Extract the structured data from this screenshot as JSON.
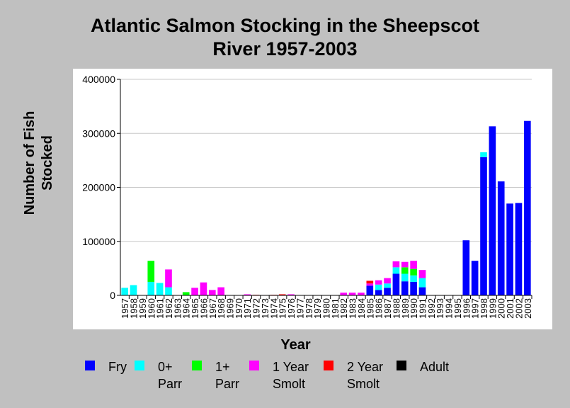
{
  "chart_data": {
    "type": "bar",
    "stacked": true,
    "title": [
      "Atlantic Salmon Stocking in the Sheepscot",
      "River 1957-2003"
    ],
    "xlabel": "Year",
    "ylabel": [
      "Number of Fish",
      "Stocked"
    ],
    "ylim": [
      0,
      400000
    ],
    "yticks": [
      "0",
      "100000",
      "200000",
      "300000",
      "400000"
    ],
    "grid": true,
    "legend_position": "bottom",
    "categories": [
      "1957",
      "1958",
      "1959",
      "1960",
      "1961",
      "1962",
      "1963",
      "1964",
      "1965",
      "1966",
      "1967",
      "1968",
      "1969",
      "1970",
      "1971",
      "1972",
      "1973",
      "1974",
      "1975",
      "1976",
      "1977",
      "1978",
      "1979",
      "1980",
      "1981",
      "1982",
      "1983",
      "1984",
      "1985",
      "1986",
      "1987",
      "1988",
      "1989",
      "1990",
      "1991",
      "1992",
      "1993",
      "1994",
      "1995",
      "1996",
      "1997",
      "1998",
      "1999",
      "2000",
      "2001",
      "2002",
      "2003"
    ],
    "series": [
      {
        "name": "Fry",
        "color": "#0000ff",
        "values": [
          0,
          0,
          0,
          0,
          0,
          0,
          0,
          0,
          0,
          0,
          0,
          0,
          0,
          0,
          0,
          0,
          0,
          0,
          0,
          0,
          0,
          0,
          0,
          0,
          0,
          0,
          0,
          0,
          18000,
          10000,
          14000,
          40000,
          26000,
          25000,
          15000,
          0,
          0,
          0,
          0,
          102000,
          64000,
          256000,
          313000,
          211000,
          170000,
          171000,
          323000
        ]
      },
      {
        "name": "0+ Parr",
        "color": "#00ffff",
        "values": [
          14000,
          19000,
          0,
          25000,
          23000,
          15000,
          0,
          0,
          0,
          0,
          0,
          0,
          0,
          0,
          0,
          0,
          0,
          0,
          0,
          0,
          0,
          0,
          0,
          0,
          0,
          0,
          0,
          0,
          0,
          10000,
          8000,
          12000,
          14000,
          12000,
          17000,
          0,
          0,
          0,
          0,
          0,
          0,
          9000,
          0,
          0,
          0,
          0,
          0
        ]
      },
      {
        "name": "1+ Parr",
        "color": "#00ff00",
        "values": [
          0,
          0,
          0,
          39000,
          0,
          0,
          0,
          6000,
          0,
          0,
          0,
          0,
          0,
          0,
          0,
          0,
          0,
          0,
          0,
          0,
          0,
          0,
          0,
          0,
          0,
          0,
          0,
          0,
          0,
          0,
          0,
          0,
          12000,
          12000,
          0,
          0,
          0,
          0,
          0,
          0,
          0,
          0,
          0,
          0,
          0,
          0,
          0
        ]
      },
      {
        "name": "1 Year Smolt",
        "color": "#ff00ff",
        "values": [
          0,
          0,
          0,
          0,
          0,
          33000,
          0,
          0,
          14000,
          24000,
          10000,
          15000,
          0,
          0,
          2000,
          0,
          0,
          0,
          0,
          2000,
          0,
          0,
          0,
          0,
          0,
          5000,
          5000,
          5000,
          4000,
          8000,
          10000,
          11000,
          10000,
          15000,
          15000,
          0,
          0,
          0,
          0,
          0,
          0,
          0,
          0,
          0,
          0,
          0,
          0
        ]
      },
      {
        "name": "2 Year Smolt",
        "color": "#ff0000",
        "values": [
          0,
          0,
          0,
          0,
          0,
          0,
          0,
          0,
          0,
          0,
          0,
          0,
          0,
          0,
          0,
          1000,
          0,
          1000,
          2000,
          0,
          0,
          0,
          0,
          0,
          0,
          0,
          0,
          0,
          5000,
          0,
          0,
          0,
          0,
          0,
          0,
          0,
          0,
          0,
          0,
          0,
          0,
          0,
          0,
          0,
          0,
          0,
          0
        ]
      },
      {
        "name": "Adult",
        "color": "#000000",
        "values": [
          0,
          0,
          0,
          0,
          0,
          0,
          0,
          0,
          0,
          0,
          0,
          0,
          0,
          0,
          0,
          0,
          0,
          0,
          0,
          0,
          0,
          0,
          0,
          0,
          0,
          0,
          0,
          0,
          0,
          0,
          0,
          0,
          0,
          0,
          0,
          0,
          0,
          0,
          0,
          0,
          0,
          0,
          0,
          0,
          0,
          0,
          0
        ]
      }
    ]
  },
  "legend": [
    {
      "line1": "Fry",
      "line2": "",
      "color": "#0000ff"
    },
    {
      "line1": "0+",
      "line2": "Parr",
      "color": "#00ffff"
    },
    {
      "line1": "1+",
      "line2": "Parr",
      "color": "#00ff00"
    },
    {
      "line1": "1 Year",
      "line2": "Smolt",
      "color": "#ff00ff"
    },
    {
      "line1": "2 Year",
      "line2": "Smolt",
      "color": "#ff0000"
    },
    {
      "line1": "Adult",
      "line2": "",
      "color": "#000000"
    }
  ]
}
